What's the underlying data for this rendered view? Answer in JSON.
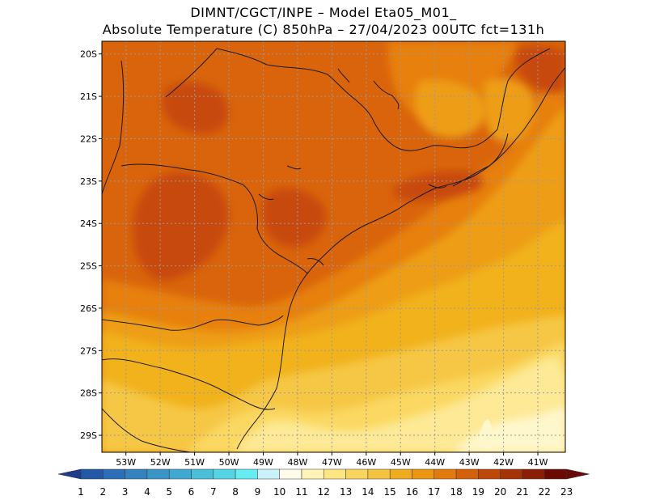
{
  "title": {
    "line1": "DIMNT/CGCT/INPE –  Model Eta05_M01_",
    "line2": "Absolute Temperature (C) 850hPa –  27/04/2023 00UTC fct=131h"
  },
  "map": {
    "lat_labels": [
      "20S",
      "21S",
      "22S",
      "23S",
      "24S",
      "25S",
      "26S",
      "27S",
      "28S",
      "29S"
    ],
    "lon_labels": [
      "53W",
      "52W",
      "51W",
      "50W",
      "49W",
      "48W",
      "47W",
      "46W",
      "45W",
      "44W",
      "43W",
      "42W",
      "41W"
    ],
    "lon_range_deg": [
      -53.7,
      -40.2
    ],
    "lat_range_deg": [
      -19.7,
      -29.4
    ],
    "gridlines": "dotted",
    "field_colors": {
      "t12": "#fff7cc",
      "t13": "#fde996",
      "t14": "#fbd862",
      "t15": "#f6c744",
      "t16": "#f1b21f",
      "t17": "#ee9e16",
      "t18": "#e7800f",
      "t19": "#d9640c",
      "t20": "#c84a07"
    }
  },
  "colorbar": {
    "labels": [
      "1",
      "2",
      "3",
      "4",
      "5",
      "6",
      "7",
      "8",
      "9",
      "10",
      "11",
      "12",
      "13",
      "14",
      "15",
      "16",
      "17",
      "18",
      "19",
      "20",
      "21",
      "22",
      "23"
    ],
    "colors": [
      "#1f3b8c",
      "#2258a6",
      "#2d6fb6",
      "#3382be",
      "#3a95c6",
      "#41a9cf",
      "#49bfd9",
      "#55d4e3",
      "#66ecf3",
      "#c9f2fb",
      "#fffbeb",
      "#fff3b8",
      "#fde681",
      "#f9d55e",
      "#f3c23f",
      "#efac1e",
      "#ea9613",
      "#e27a0e",
      "#d3600a",
      "#bd4807",
      "#a53305",
      "#8a1f05",
      "#6b0a04"
    ]
  }
}
